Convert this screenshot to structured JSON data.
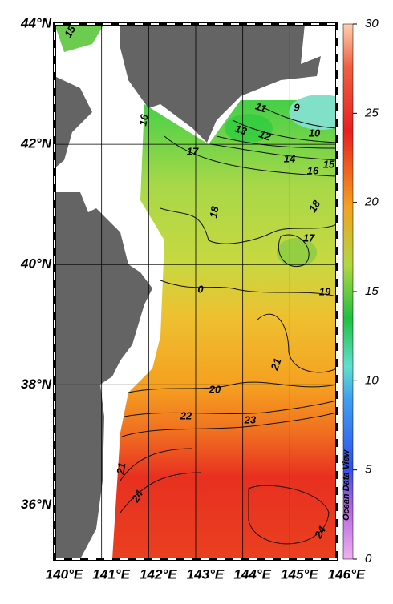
{
  "map": {
    "latlim": [
      35.1,
      44
    ],
    "lonlim": [
      140,
      146
    ],
    "lat_ticks": [
      {
        "value": 44,
        "label": "44°N"
      },
      {
        "value": 42,
        "label": "42°N"
      },
      {
        "value": 40,
        "label": "40°N"
      },
      {
        "value": 38,
        "label": "38°N"
      },
      {
        "value": 36,
        "label": "36°N"
      }
    ],
    "lon_ticks": [
      {
        "value": 140,
        "label": "140°E"
      },
      {
        "value": 141,
        "label": "141°E"
      },
      {
        "value": 142,
        "label": "142°E"
      },
      {
        "value": 143,
        "label": "143°E"
      },
      {
        "value": 144,
        "label": "144°E"
      },
      {
        "value": 145,
        "label": "145°E"
      },
      {
        "value": 146,
        "label": "146°E"
      }
    ],
    "colorbar": {
      "lim": [
        0,
        30
      ],
      "ticks": [
        0,
        5,
        10,
        15,
        20,
        25,
        30
      ]
    },
    "contour_labels": [
      15,
      16,
      17,
      18,
      17,
      18,
      19,
      21,
      20,
      22,
      23,
      21,
      24,
      24,
      13,
      12,
      10,
      14,
      16,
      15,
      11,
      9,
      0
    ],
    "watermark": "Ocean Data View"
  }
}
